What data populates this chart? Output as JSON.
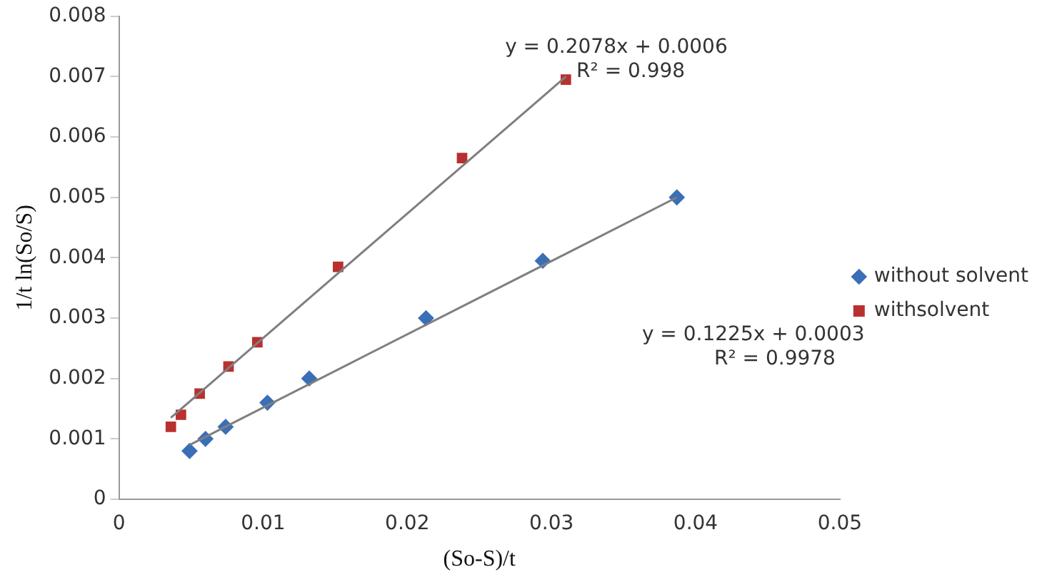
{
  "chart_data": {
    "type": "scatter",
    "xlabel": "(So-S)/t",
    "ylabel": "1/t ln(So/S)",
    "xlim": [
      0,
      0.05
    ],
    "xticks": [
      0,
      0.01,
      0.02,
      0.03,
      0.04,
      0.05
    ],
    "ylim": [
      0,
      0.008
    ],
    "yticks": [
      0,
      0.001,
      0.002,
      0.003,
      0.004,
      0.005,
      0.006,
      0.007,
      0.008
    ],
    "grid": false,
    "legend": "right",
    "series": [
      {
        "name": "without solvent",
        "color": "#3a6fb7",
        "marker": "diamond",
        "x": [
          0.0049,
          0.006,
          0.0074,
          0.0103,
          0.0132,
          0.0213,
          0.0294,
          0.0387
        ],
        "values": [
          0.0008,
          0.001,
          0.0012,
          0.0016,
          0.002,
          0.003,
          0.00395,
          0.005
        ]
      },
      {
        "name": "withsolvent",
        "color": "#b8312f",
        "marker": "square",
        "x": [
          0.0036,
          0.0043,
          0.0056,
          0.0076,
          0.0096,
          0.0152,
          0.0238,
          0.031
        ],
        "values": [
          0.0012,
          0.0014,
          0.00175,
          0.0022,
          0.0026,
          0.00385,
          0.00565,
          0.00695
        ]
      },
      {
        "type": "line",
        "color": "#7f7f7f",
        "marker": "none",
        "x": [
          0.0049,
          0.0387
        ],
        "values": [
          0.0009,
          0.005
        ]
      },
      {
        "type": "line",
        "color": "#7f7f7f",
        "marker": "none",
        "x": [
          0.0036,
          0.031
        ],
        "values": [
          0.00135,
          0.007
        ]
      }
    ],
    "annotations": [
      "y = 0.2078x + 0.0006",
      "R² = 0.998",
      "y = 0.1225x + 0.0003",
      "R² = 0.9978"
    ]
  }
}
